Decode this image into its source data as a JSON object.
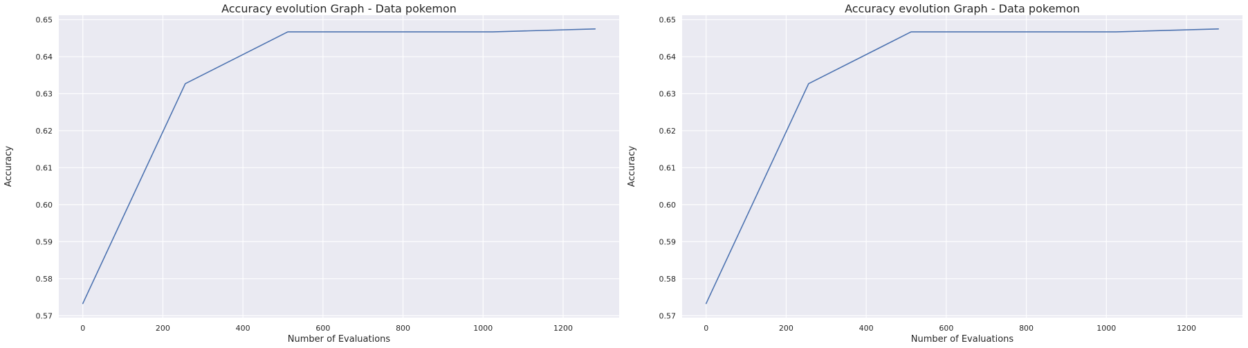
{
  "chart_data": [
    {
      "type": "line",
      "title": "Accuracy evolution Graph - Data pokemon",
      "xlabel": "Number of Evaluations",
      "ylabel": "Accuracy",
      "xlim": [
        -60,
        1340
      ],
      "ylim": [
        0.5695,
        0.6512
      ],
      "xticks": [
        0,
        200,
        400,
        600,
        800,
        1000,
        1200
      ],
      "xtick_labels": [
        "0",
        "200",
        "400",
        "600",
        "800",
        "1000",
        "1200"
      ],
      "yticks": [
        0.57,
        0.58,
        0.59,
        0.6,
        0.61,
        0.62,
        0.63,
        0.64,
        0.65
      ],
      "ytick_labels": [
        "0.57",
        "0.58",
        "0.59",
        "0.60",
        "0.61",
        "0.62",
        "0.63",
        "0.64",
        "0.65"
      ],
      "grid": true,
      "background": "#eaeaf2",
      "grid_color": "#ffffff",
      "series": [
        {
          "color": "#4c72b0",
          "x": [
            0,
            256,
            512,
            768,
            1024,
            1280
          ],
          "y": [
            0.5733,
            0.6327,
            0.6467,
            0.6467,
            0.6467,
            0.6475
          ]
        }
      ]
    },
    {
      "type": "line",
      "title": "Accuracy evolution Graph - Data pokemon",
      "xlabel": "Number of Evaluations",
      "ylabel": "Accuracy",
      "xlim": [
        -60,
        1340
      ],
      "ylim": [
        0.5695,
        0.6512
      ],
      "xticks": [
        0,
        200,
        400,
        600,
        800,
        1000,
        1200
      ],
      "xtick_labels": [
        "0",
        "200",
        "400",
        "600",
        "800",
        "1000",
        "1200"
      ],
      "yticks": [
        0.57,
        0.58,
        0.59,
        0.6,
        0.61,
        0.62,
        0.63,
        0.64,
        0.65
      ],
      "ytick_labels": [
        "0.57",
        "0.58",
        "0.59",
        "0.60",
        "0.61",
        "0.62",
        "0.63",
        "0.64",
        "0.65"
      ],
      "grid": true,
      "background": "#eaeaf2",
      "grid_color": "#ffffff",
      "series": [
        {
          "color": "#4c72b0",
          "x": [
            0,
            256,
            512,
            768,
            1024,
            1280
          ],
          "y": [
            0.5733,
            0.6327,
            0.6467,
            0.6467,
            0.6467,
            0.6475
          ]
        }
      ]
    }
  ]
}
